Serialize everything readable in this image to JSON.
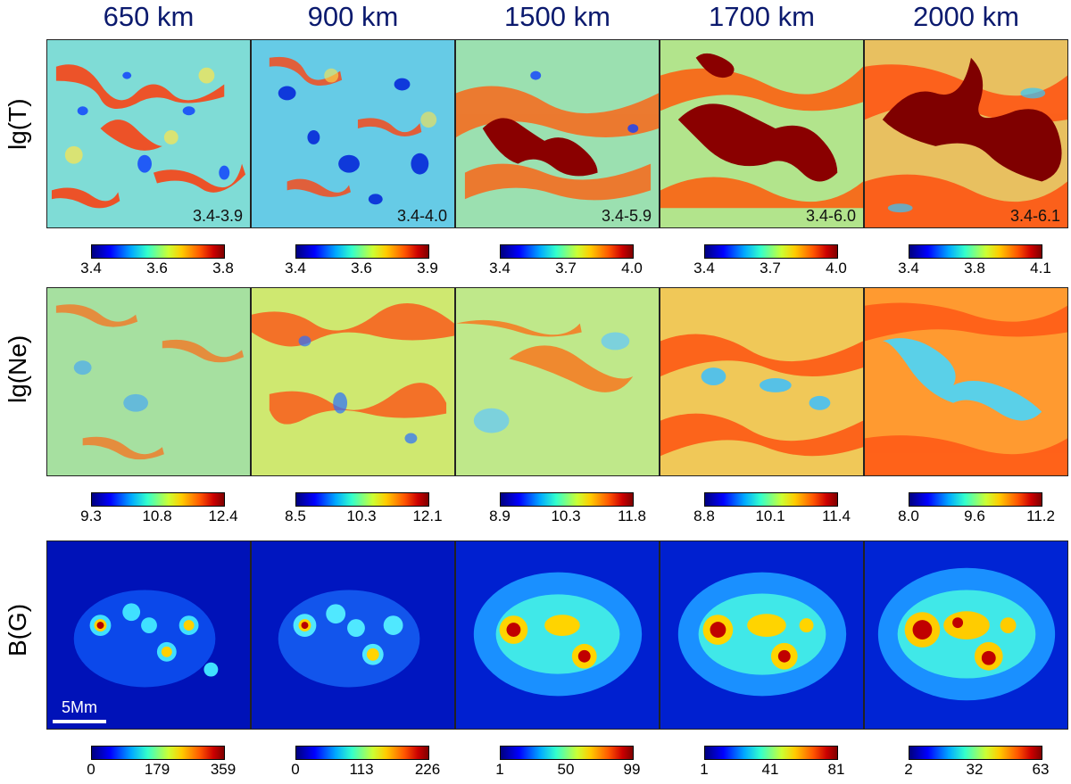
{
  "heights": [
    "650 km",
    "900 km",
    "1500 km",
    "1700 km",
    "2000 km"
  ],
  "rows": [
    {
      "label": "lg(T)",
      "ranges": [
        "3.4-3.9",
        "3.4-4.0",
        "3.4-5.9",
        "3.4-6.0",
        "3.4-6.1"
      ],
      "colorbars": [
        [
          "3.4",
          "3.6",
          "3.8"
        ],
        [
          "3.4",
          "3.6",
          "3.9"
        ],
        [
          "3.4",
          "3.7",
          "4.0"
        ],
        [
          "3.4",
          "3.7",
          "4.0"
        ],
        [
          "3.4",
          "3.8",
          "4.1"
        ]
      ]
    },
    {
      "label": "lg(Ne)",
      "colorbars": [
        [
          "9.3",
          "10.8",
          "12.4"
        ],
        [
          "8.5",
          "10.3",
          "12.1"
        ],
        [
          "8.9",
          "10.3",
          "11.8"
        ],
        [
          "8.8",
          "10.1",
          "11.4"
        ],
        [
          "8.0",
          "9.6",
          "11.2"
        ]
      ]
    },
    {
      "label": "B(G)",
      "scalebar": "5Mm",
      "colorbars": [
        [
          "0",
          "179",
          "359"
        ],
        [
          "0",
          "113",
          "226"
        ],
        [
          "1",
          "50",
          "99"
        ],
        [
          "1",
          "41",
          "81"
        ],
        [
          "2",
          "32",
          "63"
        ]
      ]
    }
  ]
}
